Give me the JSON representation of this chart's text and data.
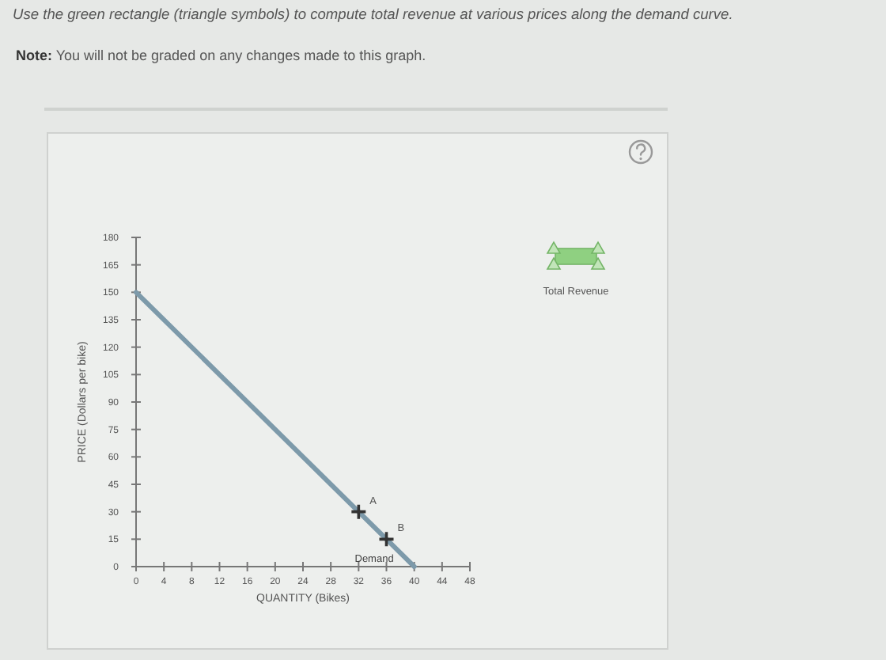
{
  "chart_data": {
    "type": "line",
    "title": "Use the green rectangle (triangle symbols) to compute total revenue at various prices along the demand curve.",
    "subtitle": "Note: You will not be graded on any changes made to this graph.",
    "xlabel": "QUANTITY (Bikes)",
    "ylabel": "PRICE (Dollars per bike)",
    "annotations": [
      {
        "text": "A",
        "x": 32,
        "y": 30
      },
      {
        "text": "B",
        "x": 36,
        "y": 15
      },
      "Total Revenue"
    ],
    "series": [
      {
        "name": "Demand",
        "color": "#7d9aaa",
        "x": [
          0,
          40
        ],
        "values": [
          150,
          0
        ]
      },
      {
        "type": "scatter",
        "color": "#333333",
        "marker": "cross",
        "x": [
          32,
          36
        ],
        "values": [
          30,
          15
        ]
      }
    ],
    "xlim": [
      0,
      48
    ],
    "xticks": [
      0,
      4,
      8,
      12,
      16,
      20,
      24,
      28,
      32,
      36,
      40,
      44,
      48
    ],
    "ylim": [
      0,
      180
    ],
    "yticks": [
      0,
      15,
      30,
      45,
      60,
      75,
      90,
      105,
      120,
      135,
      150,
      165,
      180
    ]
  }
}
